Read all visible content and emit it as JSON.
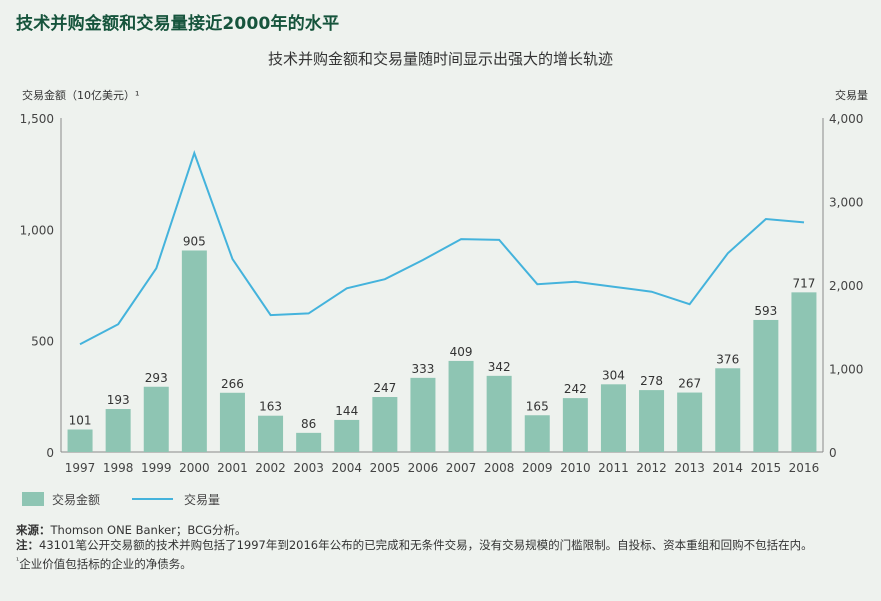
{
  "title": "技术并购金额和交易量接近2000年的水平",
  "chart_data": {
    "type": "bar+line",
    "subtitle": "技术并购金额和交易量随时间显示出强大的增长轨迹",
    "left_axis_label": "交易金额（10亿美元）¹",
    "right_axis_label": "交易量",
    "categories": [
      "1997",
      "1998",
      "1999",
      "2000",
      "2001",
      "2002",
      "2003",
      "2004",
      "2005",
      "2006",
      "2007",
      "2008",
      "2009",
      "2010",
      "2011",
      "2012",
      "2013",
      "2014",
      "2015",
      "2016"
    ],
    "left_ticks": [
      "0",
      "500",
      "1,000",
      "1,500"
    ],
    "left_tick_values": [
      0,
      500,
      1000,
      1500
    ],
    "right_ticks": [
      "0",
      "1,000",
      "2,000",
      "3,000",
      "4,000"
    ],
    "right_tick_values": [
      0,
      1000,
      2000,
      3000,
      4000
    ],
    "ylim_left": [
      0,
      1500
    ],
    "ylim_right": [
      0,
      4000
    ],
    "series": [
      {
        "name": "交易金额",
        "type": "bar",
        "axis": "left",
        "color": "#8ec5b3",
        "values": [
          101,
          193,
          293,
          905,
          266,
          163,
          86,
          144,
          247,
          333,
          409,
          342,
          165,
          242,
          304,
          278,
          267,
          376,
          593,
          717
        ],
        "labels": [
          "101",
          "193",
          "293",
          "905",
          "266",
          "163",
          "86",
          "144",
          "247",
          "333",
          "409",
          "342",
          "165",
          "242",
          "304",
          "278",
          "267",
          "376",
          "593",
          "717"
        ]
      },
      {
        "name": "交易量",
        "type": "line",
        "axis": "right",
        "color": "#44b3dc",
        "values": [
          1290,
          1530,
          2200,
          3580,
          2310,
          1640,
          1660,
          1960,
          2070,
          2300,
          2550,
          2540,
          2010,
          2040,
          1980,
          1920,
          1770,
          2380,
          2790,
          2750
        ]
      }
    ]
  },
  "footnotes": {
    "source_key": "来源：",
    "source_text": "Thomson ONE Banker；BCG分析。",
    "note_key": "注：",
    "note_text": "43101笔公开交易额的技术并购包括了1997年到2016年公布的已完成和无条件交易，没有交易规模的门槛限制。自投标、资本重组和回购不包括在内。",
    "footnote_mark": "¹",
    "footnote_text": "企业价值包括标的企业的净债务。"
  }
}
